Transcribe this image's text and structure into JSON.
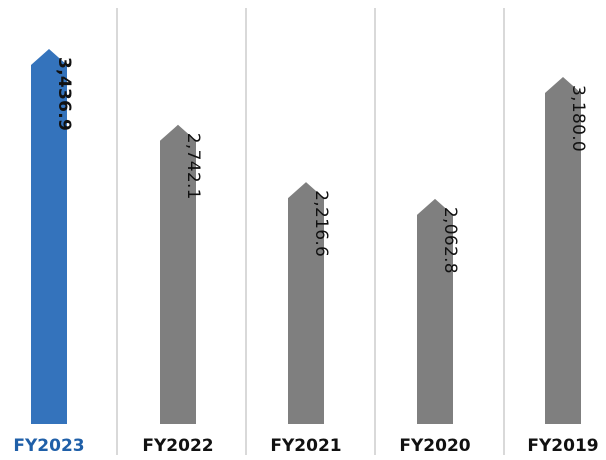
{
  "chart_data": {
    "type": "bar",
    "bar_shape": "arrow-up",
    "categories": [
      "FY2023",
      "FY2022",
      "FY2021",
      "FY2020",
      "FY2019"
    ],
    "values": [
      3436.9,
      2742.1,
      2216.6,
      2062.8,
      3180.0
    ],
    "value_labels": [
      "3,436.9",
      "2,742.1",
      "2,216.6",
      "2,062.8",
      "3,180.0"
    ],
    "highlight_category": "FY2023",
    "colors": {
      "highlight": "#3473bc",
      "default": "#7f7f7f",
      "highlight_label": "#1f5fa8",
      "default_label": "#111111",
      "value_label": "#111111"
    },
    "ylim": [
      0,
      3436.9
    ],
    "grid": false,
    "title": "",
    "xlabel": "",
    "ylabel": ""
  }
}
